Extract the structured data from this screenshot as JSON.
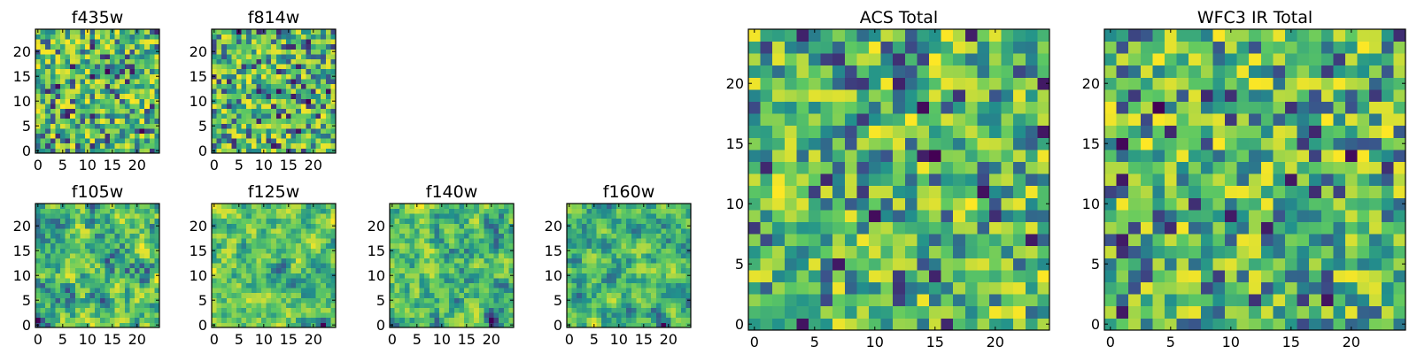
{
  "chart_data": [
    {
      "type": "heatmap",
      "title": "f435w",
      "grid": false,
      "colormap": "viridis",
      "shape": [
        25,
        25
      ],
      "xlim": [
        -0.5,
        24.5
      ],
      "ylim": [
        -0.5,
        24.5
      ],
      "xticks": [
        0,
        5,
        10,
        15,
        20
      ],
      "yticks": [
        0,
        5,
        10,
        15,
        20
      ],
      "x_tick_labels": [
        "0",
        "5",
        "10",
        "15",
        "20"
      ],
      "y_tick_labels": [
        "0",
        "5",
        "10",
        "15",
        "20"
      ]
    },
    {
      "type": "heatmap",
      "title": "f814w",
      "grid": false,
      "colormap": "viridis",
      "shape": [
        25,
        25
      ],
      "xlim": [
        -0.5,
        24.5
      ],
      "ylim": [
        -0.5,
        24.5
      ],
      "xticks": [
        0,
        5,
        10,
        15,
        20
      ],
      "yticks": [
        0,
        5,
        10,
        15,
        20
      ],
      "x_tick_labels": [
        "0",
        "5",
        "10",
        "15",
        "20"
      ],
      "y_tick_labels": [
        "0",
        "5",
        "10",
        "15",
        "20"
      ]
    },
    {
      "type": "heatmap",
      "title": "f105w",
      "grid": false,
      "colormap": "viridis",
      "shape": [
        25,
        25
      ],
      "xlim": [
        -0.5,
        24.5
      ],
      "ylim": [
        -0.5,
        24.5
      ],
      "xticks": [
        0,
        5,
        10,
        15,
        20
      ],
      "yticks": [
        0,
        5,
        10,
        15,
        20
      ],
      "x_tick_labels": [
        "0",
        "5",
        "10",
        "15",
        "20"
      ],
      "y_tick_labels": [
        "0",
        "5",
        "10",
        "15",
        "20"
      ]
    },
    {
      "type": "heatmap",
      "title": "f125w",
      "grid": false,
      "colormap": "viridis",
      "shape": [
        25,
        25
      ],
      "xlim": [
        -0.5,
        24.5
      ],
      "ylim": [
        -0.5,
        24.5
      ],
      "xticks": [
        0,
        5,
        10,
        15,
        20
      ],
      "yticks": [
        0,
        5,
        10,
        15,
        20
      ],
      "x_tick_labels": [
        "0",
        "5",
        "10",
        "15",
        "20"
      ],
      "y_tick_labels": [
        "0",
        "5",
        "10",
        "15",
        "20"
      ]
    },
    {
      "type": "heatmap",
      "title": "f140w",
      "grid": false,
      "colormap": "viridis",
      "shape": [
        25,
        25
      ],
      "xlim": [
        -0.5,
        24.5
      ],
      "ylim": [
        -0.5,
        24.5
      ],
      "xticks": [
        0,
        5,
        10,
        15,
        20
      ],
      "yticks": [
        0,
        5,
        10,
        15,
        20
      ],
      "x_tick_labels": [
        "0",
        "5",
        "10",
        "15",
        "20"
      ],
      "y_tick_labels": [
        "0",
        "5",
        "10",
        "15",
        "20"
      ]
    },
    {
      "type": "heatmap",
      "title": "f160w",
      "grid": false,
      "colormap": "viridis",
      "shape": [
        25,
        25
      ],
      "xlim": [
        -0.5,
        24.5
      ],
      "ylim": [
        -0.5,
        24.5
      ],
      "xticks": [
        0,
        5,
        10,
        15,
        20
      ],
      "yticks": [
        0,
        5,
        10,
        15,
        20
      ],
      "x_tick_labels": [
        "0",
        "5",
        "10",
        "15",
        "20"
      ],
      "y_tick_labels": [
        "0",
        "5",
        "10",
        "15",
        "20"
      ]
    },
    {
      "type": "heatmap",
      "title": "ACS Total",
      "grid": false,
      "colormap": "viridis",
      "shape": [
        25,
        25
      ],
      "xlim": [
        -0.5,
        24.5
      ],
      "ylim": [
        -0.5,
        24.5
      ],
      "xticks": [
        0,
        5,
        10,
        15,
        20
      ],
      "yticks": [
        0,
        5,
        10,
        15,
        20
      ],
      "x_tick_labels": [
        "0",
        "5",
        "10",
        "15",
        "20"
      ],
      "y_tick_labels": [
        "0",
        "5",
        "10",
        "15",
        "20"
      ]
    },
    {
      "type": "heatmap",
      "title": "WFC3 IR Total",
      "grid": false,
      "colormap": "viridis",
      "shape": [
        25,
        25
      ],
      "xlim": [
        -0.5,
        24.5
      ],
      "ylim": [
        -0.5,
        24.5
      ],
      "xticks": [
        0,
        5,
        10,
        15,
        20
      ],
      "yticks": [
        0,
        5,
        10,
        15,
        20
      ],
      "x_tick_labels": [
        "0",
        "5",
        "10",
        "15",
        "20"
      ],
      "y_tick_labels": [
        "0",
        "5",
        "10",
        "15",
        "20"
      ]
    }
  ],
  "colors": {
    "viridis": [
      "#440154",
      "#3b528b",
      "#21918c",
      "#5ec962",
      "#fde725"
    ],
    "axis": "#000000",
    "background": "#ffffff"
  }
}
